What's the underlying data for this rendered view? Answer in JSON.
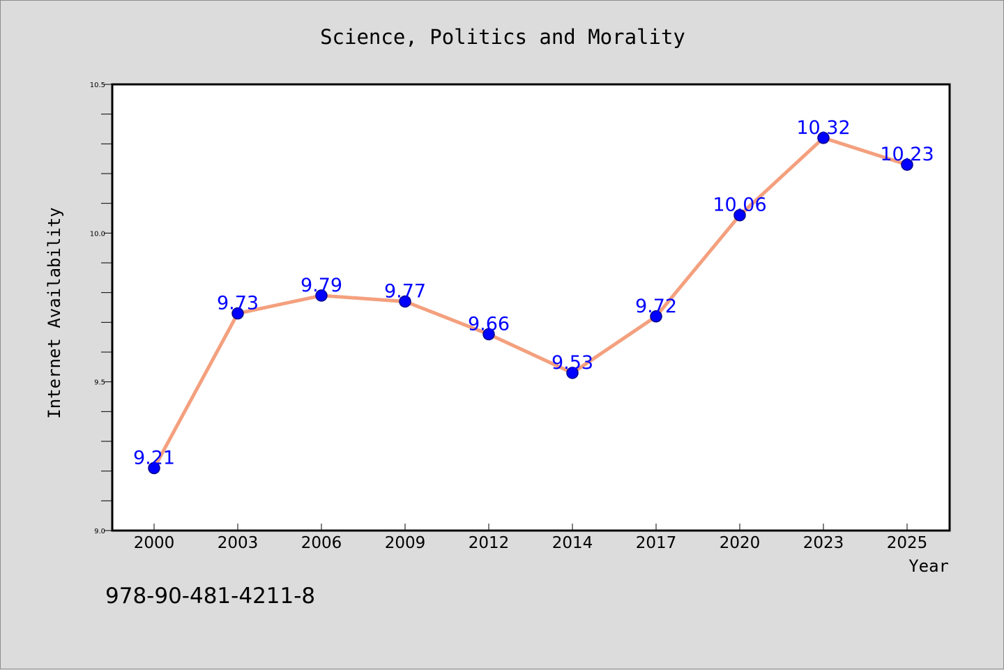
{
  "page": {
    "isbn_text": "978-90-481-4211-8"
  },
  "chart_data": {
    "type": "line",
    "title": "Science, Politics and Morality",
    "xlabel": "Year",
    "ylabel": "Internet Availability",
    "categories": [
      "2000",
      "2003",
      "2006",
      "2009",
      "2012",
      "2014",
      "2017",
      "2020",
      "2023",
      "2025"
    ],
    "series": [
      {
        "values": [
          9.21,
          9.73,
          9.79,
          9.77,
          9.66,
          9.53,
          9.72,
          10.06,
          10.32,
          10.23
        ],
        "labels": [
          "9.21",
          "9.73",
          "9.79",
          "9.77",
          "9.66",
          "9.53",
          "9.72",
          "10.06",
          "10.32",
          "10.23"
        ]
      }
    ],
    "ylim": [
      9.0,
      10.5
    ],
    "yticks": [
      "9.0",
      "9.5",
      "10.0",
      "10.5"
    ],
    "grid": false,
    "colors": {
      "line": "#f4a07e",
      "marker": "#0000ff",
      "marker_edge": "#00008b",
      "data_label": "#0000ff",
      "background": "#dcdcdc",
      "plot_background": "#ffffff"
    }
  }
}
